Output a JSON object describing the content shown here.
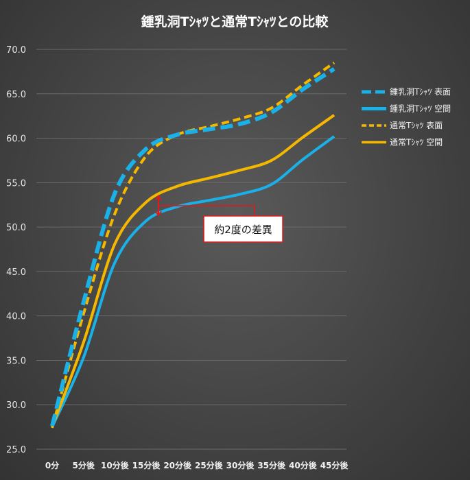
{
  "chart_data": {
    "type": "line",
    "title": "鍾乳洞Tｼｬﾂと通常Tｼｬﾂとの比較",
    "categories": [
      "0分",
      "5分後",
      "10分後",
      "15分後",
      "20分後",
      "25分後",
      "30分後",
      "35分後",
      "40分後",
      "45分後"
    ],
    "ylim": [
      25.0,
      70.0
    ],
    "yticks": [
      "25.0",
      "30.0",
      "35.0",
      "40.0",
      "45.0",
      "50.0",
      "55.0",
      "60.0",
      "65.0",
      "70.0"
    ],
    "grid": true,
    "legend_position": "right",
    "series": [
      {
        "name": "鍾乳洞Tｼｬﾂ 表面",
        "color": "#1ab0e8",
        "style": "dashed",
        "values": [
          27.6,
          41.5,
          53.8,
          58.8,
          60.4,
          61.0,
          61.6,
          62.9,
          65.5,
          67.8
        ]
      },
      {
        "name": "鍾乳洞Tｼｬﾂ 空間",
        "color": "#1ab0e8",
        "style": "solid",
        "values": [
          27.5,
          35.3,
          46.0,
          50.7,
          52.3,
          53.0,
          53.7,
          54.8,
          57.6,
          60.2
        ]
      },
      {
        "name": "通常Tｼｬﾂ 表面",
        "color": "#f5b800",
        "style": "dashed",
        "values": [
          27.4,
          40.2,
          51.5,
          58.0,
          60.4,
          61.3,
          62.2,
          63.4,
          66.0,
          68.5
        ]
      },
      {
        "name": "通常Tｼｬﾂ 空間",
        "color": "#f5b800",
        "style": "solid",
        "values": [
          27.5,
          37.0,
          48.1,
          52.8,
          54.6,
          55.5,
          56.4,
          57.5,
          60.1,
          62.6
        ]
      }
    ],
    "annotation": {
      "text": "約2度の差異",
      "category_index": 3,
      "y_top": 53.5,
      "y_bottom": 51.3
    }
  }
}
